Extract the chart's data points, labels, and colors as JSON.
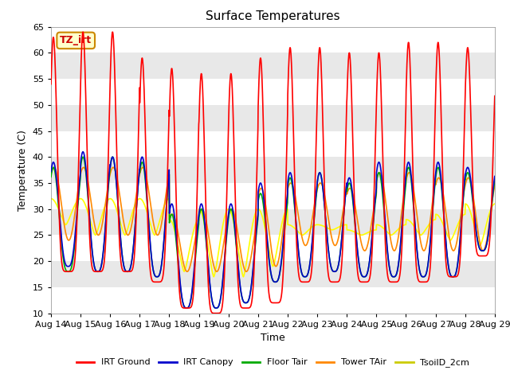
{
  "title": "Surface Temperatures",
  "xlabel": "Time",
  "ylabel": "Temperature (C)",
  "ylim": [
    10,
    65
  ],
  "x_tick_labels": [
    "Aug 14",
    "Aug 15",
    "Aug 16",
    "Aug 17",
    "Aug 18",
    "Aug 19",
    "Aug 20",
    "Aug 21",
    "Aug 22",
    "Aug 23",
    "Aug 24",
    "Aug 25",
    "Aug 26",
    "Aug 27",
    "Aug 28",
    "Aug 29"
  ],
  "annotation_text": "TZ_irt",
  "background_color": "#e8e8e8",
  "stripe_color": "#d0d0d0",
  "grid_color": "#ffffff",
  "series": {
    "IRT_Ground": {
      "color": "#ff0000",
      "label": "IRT Ground"
    },
    "IRT_Canopy": {
      "color": "#0000cc",
      "label": "IRT Canopy"
    },
    "Floor_Tair": {
      "color": "#00aa00",
      "label": "Floor Tair"
    },
    "Tower_TAir": {
      "color": "#ff8800",
      "label": "Tower TAir"
    },
    "TsoilD_2cm": {
      "color": "#ffff00",
      "label": "TsoilD_2cm"
    }
  },
  "n_days": 15,
  "day_min_irt": [
    18,
    18,
    18,
    16,
    11,
    10,
    11,
    12,
    16,
    16,
    16,
    16,
    16,
    17,
    21
  ],
  "day_max_irt": [
    63,
    64,
    64,
    59,
    57,
    56,
    56,
    59,
    61,
    61,
    60,
    60,
    62,
    62,
    61
  ],
  "day_min_canopy": [
    19,
    18,
    18,
    17,
    11,
    11,
    12,
    16,
    17,
    18,
    17,
    17,
    17,
    17,
    22
  ],
  "day_max_canopy": [
    39,
    41,
    40,
    40,
    31,
    31,
    31,
    35,
    37,
    37,
    36,
    39,
    39,
    39,
    38
  ],
  "day_min_floor": [
    18,
    18,
    18,
    17,
    11,
    11,
    12,
    16,
    17,
    18,
    17,
    17,
    17,
    17,
    22
  ],
  "day_max_floor": [
    38,
    40,
    40,
    39,
    29,
    30,
    30,
    33,
    36,
    37,
    35,
    37,
    38,
    38,
    37
  ],
  "day_min_tower": [
    24,
    25,
    25,
    25,
    18,
    18,
    18,
    19,
    23,
    23,
    22,
    22,
    22,
    22,
    22
  ],
  "day_max_tower": [
    38,
    38,
    38,
    38,
    29,
    30,
    30,
    34,
    35,
    35,
    34,
    37,
    37,
    36,
    36
  ],
  "day_min_soil": [
    27,
    25,
    25,
    25,
    18,
    17,
    17,
    19,
    25,
    26,
    25,
    25,
    25,
    24,
    23
  ],
  "day_max_soil": [
    32,
    32,
    32,
    32,
    28,
    30,
    30,
    30,
    27,
    27,
    26,
    27,
    28,
    29,
    31
  ]
}
